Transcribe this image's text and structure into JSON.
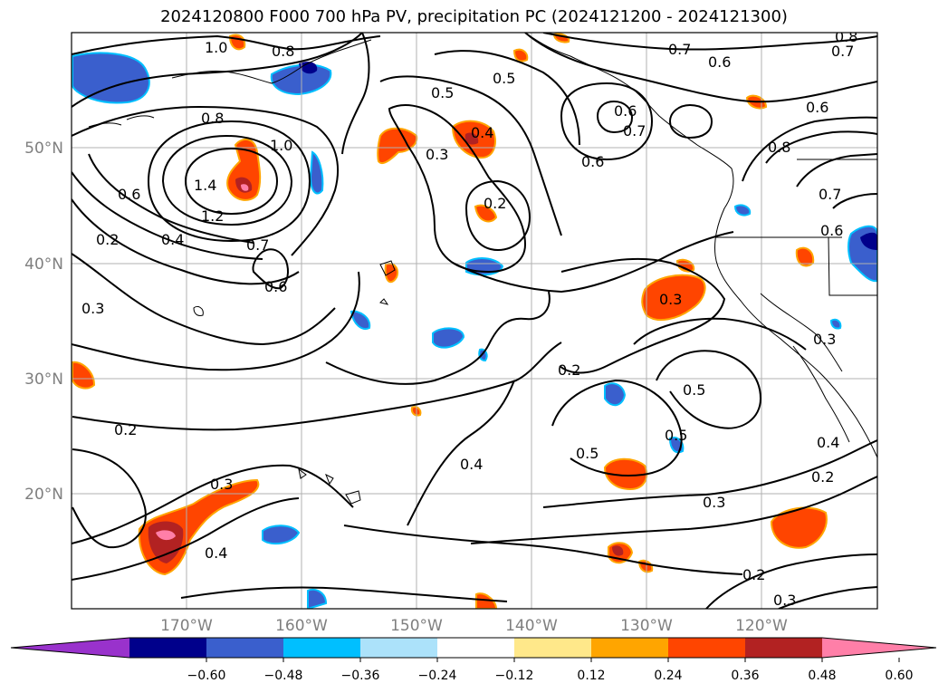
{
  "title": "2024120800 F000 700 hPa PV, precipitation PC (2024121200 - 2024121300)",
  "map": {
    "region": "North-East Pacific",
    "lon_range": [
      -180,
      -110
    ],
    "lat_range": [
      10,
      60
    ],
    "lat_ticks": [
      "50°N",
      "40°N",
      "30°N",
      "20°N"
    ],
    "lon_ticks": [
      "170°W",
      "160°W",
      "150°W",
      "140°W",
      "130°W",
      "120°W"
    ],
    "grid": true
  },
  "contour_labels": [
    "1.0",
    "0.8",
    "0.7",
    "0.6",
    "0.8",
    "0.7",
    "0.5",
    "0.5",
    "0.6",
    "0.7",
    "0.6",
    "0.8",
    "0.8",
    "1.0",
    "1.4",
    "1.2",
    "0.6",
    "0.4",
    "0.2",
    "0.7",
    "0.6",
    "0.3",
    "0.4",
    "0.3",
    "0.2",
    "0.6",
    "0.7",
    "0.6",
    "0.3",
    "0.3",
    "0.2",
    "0.5",
    "0.5",
    "0.5",
    "0.4",
    "0.2",
    "0.3",
    "0.4",
    "0.2",
    "0.3",
    "0.4",
    "0.2",
    "0.3"
  ],
  "colorbar": {
    "colors": [
      "#9932cc",
      "#00008b",
      "#3a5fcd",
      "#00bfff",
      "#ace2fa",
      "#ffffff",
      "#ffe88a",
      "#ffa500",
      "#ff4500",
      "#b22222",
      "#ff7fa8"
    ],
    "ticks": [
      "−0.60",
      "−0.48",
      "−0.36",
      "−0.24",
      "−0.12",
      "0.12",
      "0.24",
      "0.36",
      "0.48",
      "0.60"
    ]
  }
}
